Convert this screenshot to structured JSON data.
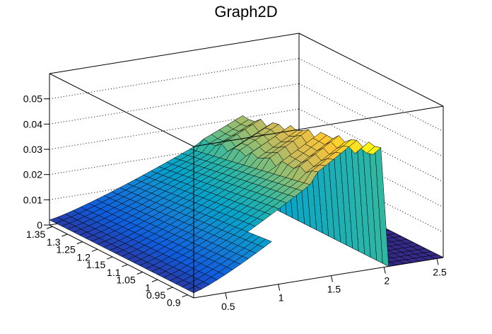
{
  "chart_data": {
    "type": "surface",
    "title": "Graph2D",
    "xlabel": "",
    "ylabel": "",
    "zlabel": "",
    "xlim": [
      0.2,
      2.56
    ],
    "ylim": [
      0.88,
      1.36
    ],
    "zlim": [
      0,
      0.06
    ],
    "x_ticks": [
      "0.5",
      "1",
      "1.5",
      "2",
      "2.5"
    ],
    "x_tick_values": [
      0.5,
      1,
      1.5,
      2,
      2.5
    ],
    "y_ticks": [
      "0.9",
      "0.95",
      "1",
      "1.05",
      "1.1",
      "1.15",
      "1.2",
      "1.25",
      "1.3",
      "1.35"
    ],
    "y_tick_values": [
      0.9,
      0.95,
      1,
      1.05,
      1.1,
      1.15,
      1.2,
      1.25,
      1.3,
      1.35
    ],
    "z_ticks": [
      "0",
      "0.01",
      "0.02",
      "0.03",
      "0.04",
      "0.05"
    ],
    "z_tick_values": [
      0,
      0.01,
      0.02,
      0.03,
      0.04,
      0.05
    ],
    "surface_peak": {
      "x": 2.0,
      "y": 0.9,
      "z": 0.045
    },
    "palette": [
      "#352a87",
      "#0f5cdd",
      "#1481d6",
      "#06a4ca",
      "#2eb7a4",
      "#87bf77",
      "#d1bb59",
      "#fec832",
      "#f9fb0e"
    ],
    "grid": true
  }
}
